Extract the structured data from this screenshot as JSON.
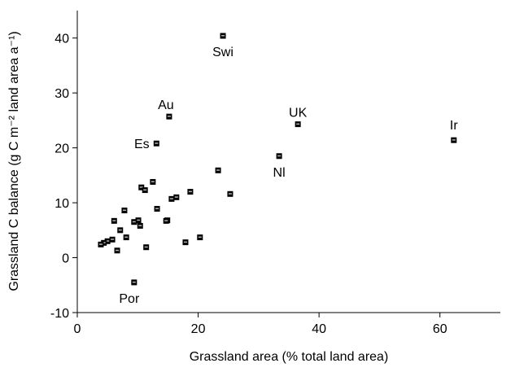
{
  "chart_data": {
    "type": "scatter",
    "xlabel": "Grassland area (% total land area)",
    "ylabel": "Grassland C balance (g C m⁻² land area a⁻¹)",
    "xlim": [
      0,
      70
    ],
    "xticks": [
      0,
      20,
      40,
      60
    ],
    "ylim": [
      -10,
      45
    ],
    "yticks": [
      -10,
      0,
      10,
      20,
      30,
      40
    ],
    "color": "#000000",
    "x": [
      24.1,
      15.2,
      13.1,
      36.5,
      62.3,
      33.4,
      9.4,
      23.3,
      25.3,
      18.7,
      16.4,
      15.6,
      12.5,
      10.6,
      11.2,
      7.8,
      6.1,
      13.2,
      10.1,
      9.4,
      10.4,
      7.1,
      8.1,
      14.9,
      14.7,
      11.4,
      6.6,
      5.8,
      5.0,
      4.4,
      3.9,
      17.9,
      20.3
    ],
    "values": [
      40.4,
      25.7,
      20.8,
      24.3,
      21.4,
      18.5,
      -4.5,
      15.9,
      11.6,
      12.0,
      11.0,
      10.7,
      13.8,
      12.8,
      12.3,
      8.6,
      6.7,
      8.9,
      6.8,
      6.5,
      5.8,
      5.0,
      3.7,
      6.8,
      6.7,
      1.9,
      1.3,
      3.3,
      3.0,
      2.7,
      2.4,
      2.8,
      3.7
    ],
    "point_labels": [
      "Swi",
      "Au",
      "Es",
      "UK",
      "Ir",
      "Nl",
      "Por",
      null,
      null,
      null,
      null,
      null,
      null,
      null,
      null,
      null,
      null,
      null,
      null,
      null,
      null,
      null,
      null,
      null,
      null,
      null,
      null,
      null,
      null,
      null,
      null,
      null,
      null
    ]
  }
}
